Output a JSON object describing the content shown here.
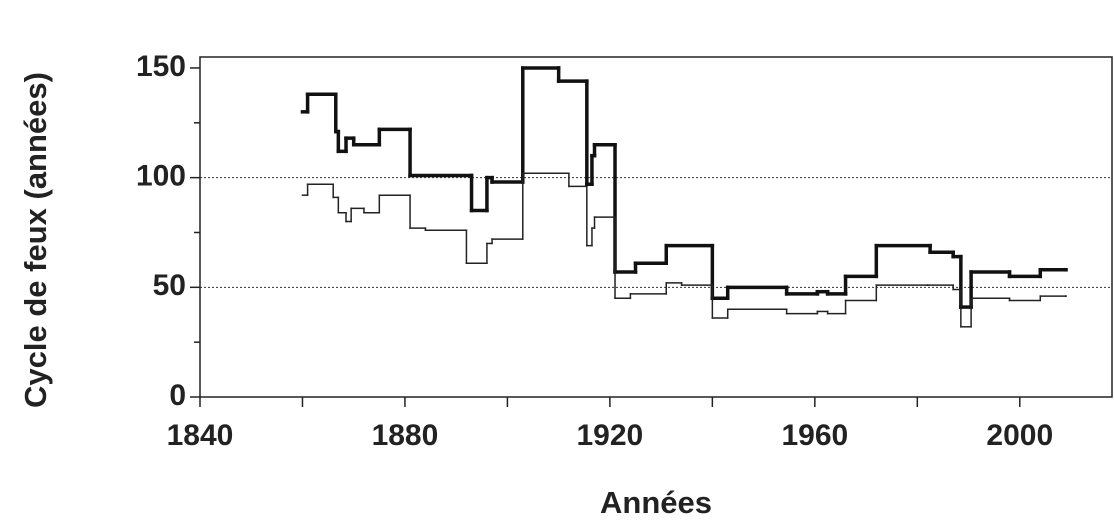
{
  "chart_data": {
    "type": "step",
    "x_label": "Années",
    "y_label": "Cycle de feux (années)",
    "xlim": [
      1840,
      2018
    ],
    "xticks": [
      1840,
      1880,
      1920,
      1960,
      2000
    ],
    "ylim": [
      0,
      155
    ],
    "yticks": [
      0,
      50,
      100,
      150
    ],
    "reference_lines": [
      50,
      100
    ],
    "series": [
      {
        "color": "#111111",
        "width": 3.5,
        "x": [
          1860,
          1861,
          1866.5,
          1867,
          1868.5,
          1870,
          1875,
          1881,
          1893,
          1896,
          1897,
          1903,
          1910,
          1915.5,
          1916.5,
          1917,
          1921,
          1925,
          1931,
          1940,
          1943,
          1954.5,
          1960.5,
          1962.5,
          1966,
          1972,
          1982.5,
          1987,
          1988.5,
          1990.5,
          1998,
          2004,
          2009
        ],
        "values": [
          130,
          138,
          121,
          112,
          118,
          115,
          122,
          101,
          85,
          100,
          98,
          150,
          144,
          97,
          110,
          115,
          57,
          61,
          69,
          45,
          50,
          47,
          48,
          47,
          55,
          69,
          66,
          64,
          41,
          57,
          55,
          58,
          58
        ]
      },
      {
        "color": "#222222",
        "width": 1.5,
        "x": [
          1860,
          1861,
          1866,
          1867,
          1868.5,
          1869.5,
          1872,
          1875,
          1881,
          1884,
          1892,
          1896,
          1897,
          1903,
          1912,
          1915.5,
          1916.5,
          1917,
          1921,
          1924,
          1931,
          1934,
          1940,
          1943,
          1954.5,
          1960.5,
          1962.5,
          1966,
          1972,
          1982,
          1987,
          1988.5,
          1990.5,
          1998,
          2004,
          2009
        ],
        "values": [
          92,
          97,
          91,
          84,
          80,
          86,
          84,
          92,
          77,
          76,
          61,
          70,
          72,
          102,
          96,
          69,
          77,
          82,
          45,
          47,
          52,
          51,
          36,
          40,
          38,
          39,
          38,
          44,
          51,
          51,
          49,
          32,
          45,
          44,
          46,
          46
        ]
      }
    ]
  }
}
